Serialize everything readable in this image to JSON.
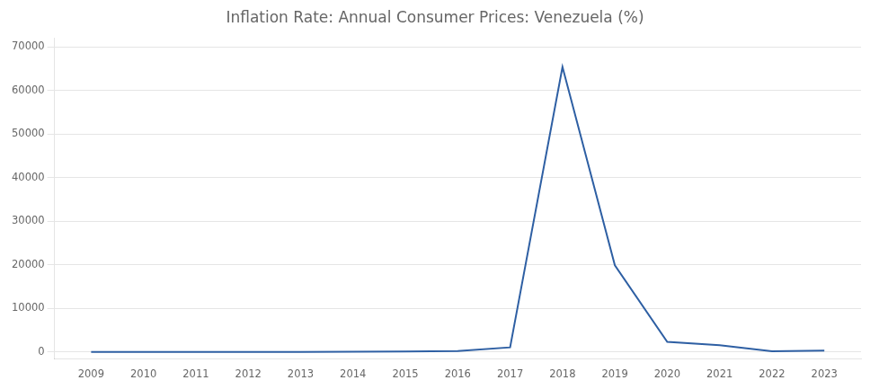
{
  "chart_data": {
    "type": "line",
    "title": "Inflation Rate: Annual Consumer Prices: Venezuela (%)",
    "x": [
      2009,
      2010,
      2011,
      2012,
      2013,
      2014,
      2015,
      2016,
      2017,
      2018,
      2019,
      2020,
      2021,
      2022,
      2023
    ],
    "values": [
      27.1,
      28.2,
      26.1,
      21.1,
      40.6,
      62.2,
      121.7,
      254.9,
      1087.5,
      65374.1,
      19906.0,
      2355.1,
      1588.5,
      200.9,
      360.0
    ],
    "color": "#2E5FA3",
    "xlim": [
      2008.3,
      2023.7
    ],
    "xticks": [
      2009,
      2010,
      2011,
      2012,
      2013,
      2014,
      2015,
      2016,
      2017,
      2018,
      2019,
      2020,
      2021,
      2022,
      2023
    ],
    "ylim": [
      -1500,
      72000
    ],
    "yticks": [
      0,
      10000,
      20000,
      30000,
      40000,
      50000,
      60000,
      70000
    ],
    "grid": "y"
  }
}
